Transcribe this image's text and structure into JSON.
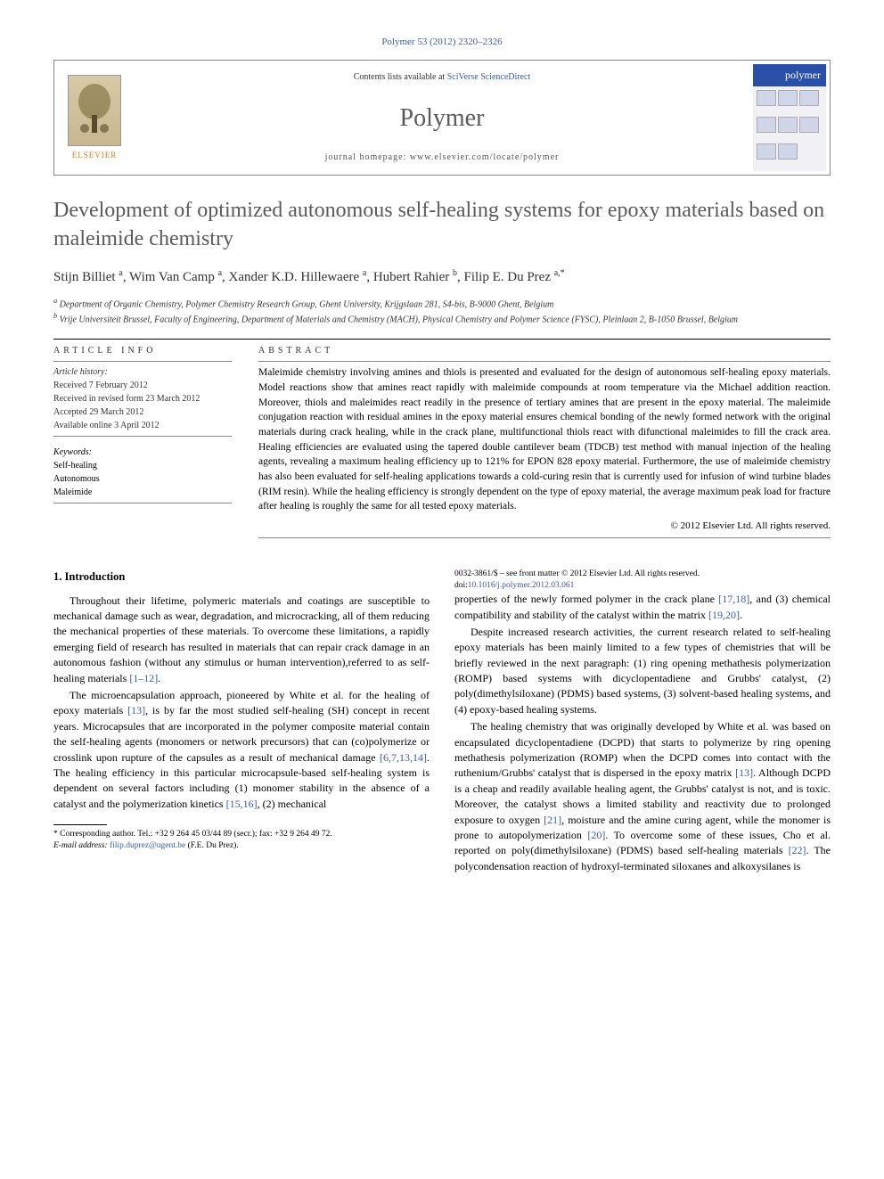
{
  "header": {
    "reference": "Polymer 53 (2012) 2320–2326",
    "contents_prefix": "Contents lists available at ",
    "contents_link": "SciVerse ScienceDirect",
    "journal": "Polymer",
    "homepage_prefix": "journal homepage: ",
    "homepage": "www.elsevier.com/locate/polymer",
    "elsevier": "ELSEVIER",
    "badge": "polymer"
  },
  "title": "Development of optimized autonomous self-healing systems for epoxy materials based on maleimide chemistry",
  "authors_html": "Stijn Billiet <sup>a</sup>, Wim Van Camp <sup>a</sup>, Xander K.D. Hillewaere <sup>a</sup>, Hubert Rahier <sup>b</sup>, Filip E. Du Prez <sup>a,*</sup>",
  "affiliations": {
    "a": "Department of Organic Chemistry, Polymer Chemistry Research Group, Ghent University, Krijgslaan 281, S4-bis, B-9000 Ghent, Belgium",
    "b": "Vrije Universiteit Brussel, Faculty of Engineering, Department of Materials and Chemistry (MACH), Physical Chemistry and Polymer Science (FYSC), Pleinlaan 2, B-1050 Brussel, Belgium"
  },
  "article_info": {
    "header": "ARTICLE INFO",
    "history_label": "Article history:",
    "received": "Received 7 February 2012",
    "revised": "Received in revised form 23 March 2012",
    "accepted": "Accepted 29 March 2012",
    "online": "Available online 3 April 2012",
    "keywords_label": "Keywords:",
    "keywords": [
      "Self-healing",
      "Autonomous",
      "Maleimide"
    ]
  },
  "abstract": {
    "header": "ABSTRACT",
    "text": "Maleimide chemistry involving amines and thiols is presented and evaluated for the design of autonomous self-healing epoxy materials. Model reactions show that amines react rapidly with maleimide compounds at room temperature via the Michael addition reaction. Moreover, thiols and maleimides react readily in the presence of tertiary amines that are present in the epoxy material. The maleimide conjugation reaction with residual amines in the epoxy material ensures chemical bonding of the newly formed network with the original materials during crack healing, while in the crack plane, multifunctional thiols react with difunctional maleimides to fill the crack area. Healing efficiencies are evaluated using the tapered double cantilever beam (TDCB) test method with manual injection of the healing agents, revealing a maximum healing efficiency up to 121% for EPON 828 epoxy material. Furthermore, the use of maleimide chemistry has also been evaluated for self-healing applications towards a cold-curing resin that is currently used for infusion of wind turbine blades (RIM resin). While the healing efficiency is strongly dependent on the type of epoxy material, the average maximum peak load for fracture after healing is roughly the same for all tested epoxy materials.",
    "copyright": "© 2012 Elsevier Ltd. All rights reserved."
  },
  "body": {
    "intro_heading": "1. Introduction",
    "p1": "Throughout their lifetime, polymeric materials and coatings are susceptible to mechanical damage such as wear, degradation, and microcracking, all of them reducing the mechanical properties of these materials. To overcome these limitations, a rapidly emerging field of research has resulted in materials that can repair crack damage in an autonomous fashion (without any stimulus or human intervention),referred to as self-healing materials ",
    "p1_ref": "[1–12]",
    "p2a": "The microencapsulation approach, pioneered by White et al. for the healing of epoxy materials ",
    "p2_ref1": "[13]",
    "p2b": ", is by far the most studied self-healing (SH) concept in recent years. Microcapsules that are incorporated in the polymer composite material contain the self-healing agents (monomers or network precursors) that can (co)polymerize or crosslink upon rupture of the capsules as a result of mechanical damage ",
    "p2_ref2": "[6,7,13,14]",
    "p2c": ". The healing efficiency in this particular microcapsule-based self-healing system is dependent on several factors including (1) monomer stability in the absence of a catalyst and the polymerization kinetics ",
    "p2_ref3": "[15,16]",
    "p2d": ", (2) mechanical",
    "p3a": "properties of the newly formed polymer in the crack plane ",
    "p3_ref1": "[17,18]",
    "p3b": ", and (3) chemical compatibility and stability of the catalyst within the matrix ",
    "p3_ref2": "[19,20]",
    "p3c": ".",
    "p4": "Despite increased research activities, the current research related to self-healing epoxy materials has been mainly limited to a few types of chemistries that will be briefly reviewed in the next paragraph: (1) ring opening methathesis polymerization (ROMP) based systems with dicyclopentadiene and Grubbs' catalyst, (2) poly(dimethylsiloxane) (PDMS) based systems, (3) solvent-based healing systems, and (4) epoxy-based healing systems.",
    "p5a": "The healing chemistry that was originally developed by White et al. was based on encapsulated dicyclopentadiene (DCPD) that starts to polymerize by ring opening methathesis polymerization (ROMP) when the DCPD comes into contact with the ruthenium/Grubbs' catalyst that is dispersed in the epoxy matrix ",
    "p5_ref1": "[13]",
    "p5b": ". Although DCPD is a cheap and readily available healing agent, the Grubbs' catalyst is not, and is toxic. Moreover, the catalyst shows a limited stability and reactivity due to prolonged exposure to oxygen ",
    "p5_ref2": "[21]",
    "p5c": ", moisture and the amine curing agent, while the monomer is prone to autopolymerization ",
    "p5_ref3": "[20]",
    "p5d": ". To overcome some of these issues, Cho et al. reported on poly(dimethylsiloxane) (PDMS) based self-healing materials ",
    "p5_ref4": "[22]",
    "p5e": ". The polycondensation reaction of hydroxyl-terminated siloxanes and alkoxysilanes is"
  },
  "footnote": {
    "corr": "* Corresponding author. Tel.: +32 9 264 45 03/44 89 (secr.); fax: +32 9 264 49 72.",
    "email_label": "E-mail address: ",
    "email": "filip.duprez@ugent.be",
    "email_tail": " (F.E. Du Prez)."
  },
  "footer": {
    "issn_line": "0032-3861/$ – see front matter © 2012 Elsevier Ltd. All rights reserved.",
    "doi_label": "doi:",
    "doi": "10.1016/j.polymer.2012.03.061"
  },
  "colors": {
    "link": "#3a5caa",
    "heading_gray": "#5a5a5a",
    "elsevier_orange": "#e67817",
    "badge_blue": "#2a4fa8"
  }
}
